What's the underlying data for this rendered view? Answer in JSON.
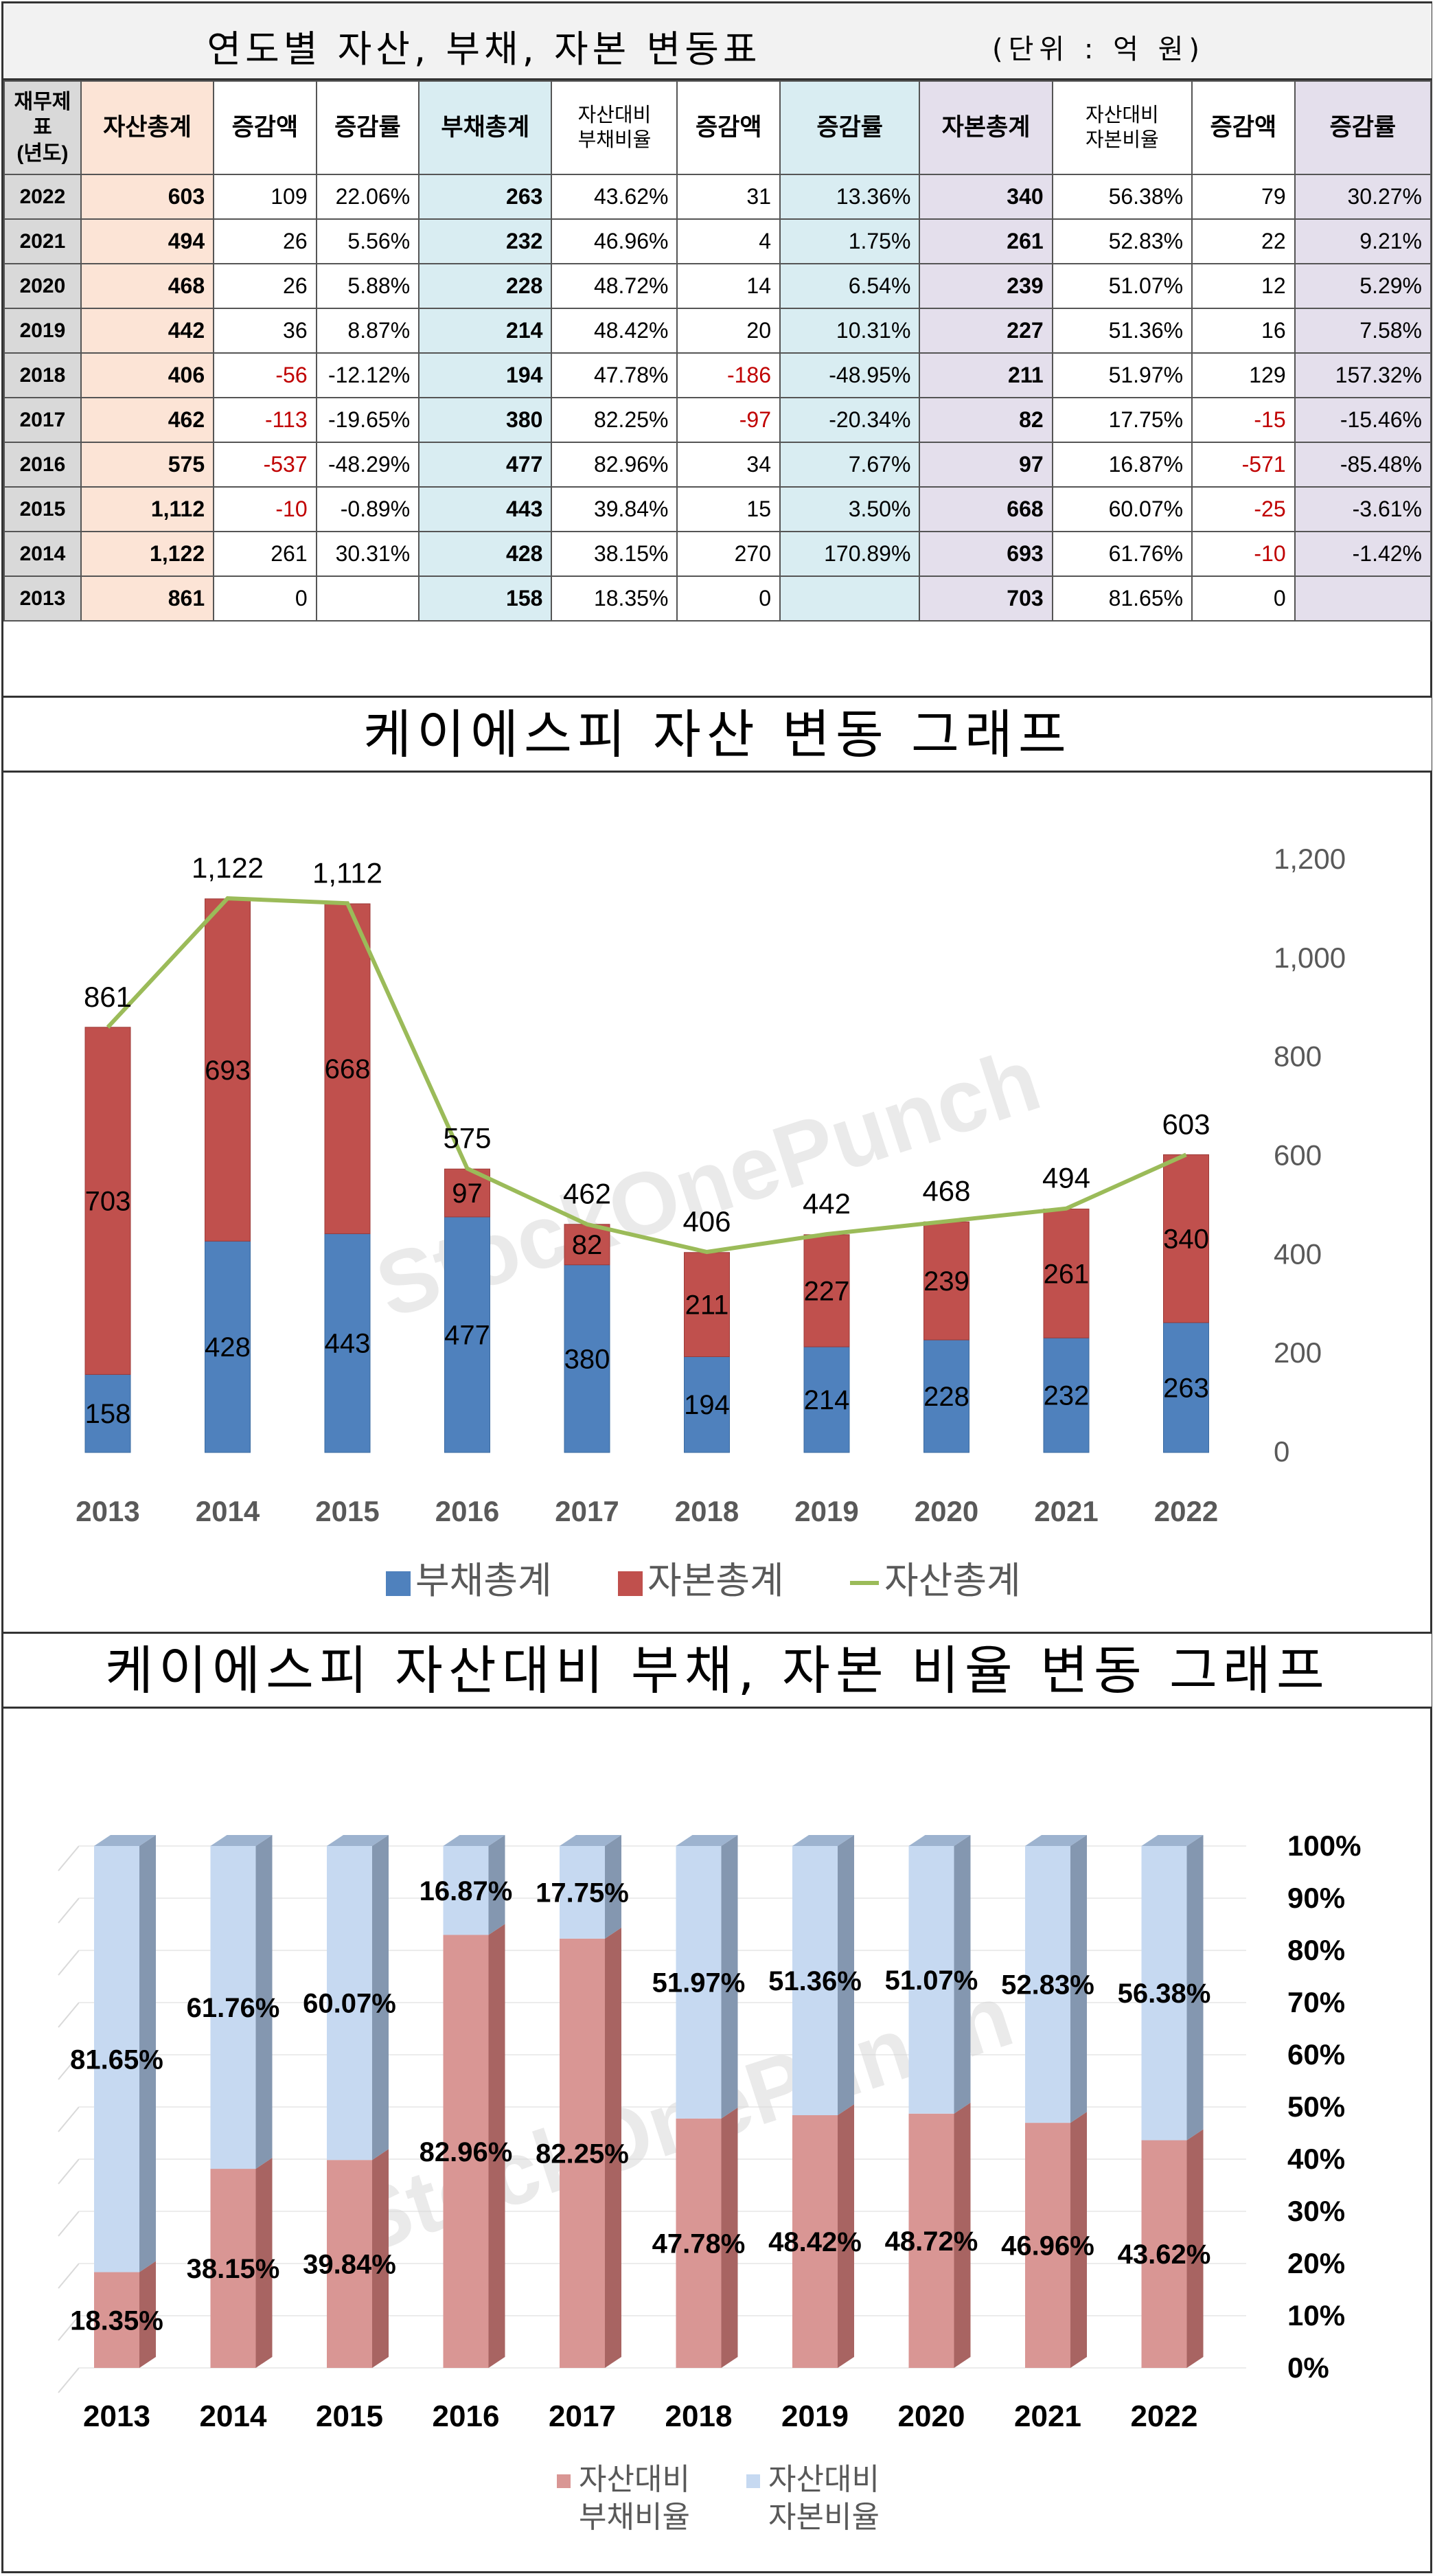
{
  "table": {
    "title": "연도별 자산, 부채, 자본 변동표",
    "unit": "(단위 : 억 원)",
    "headers": [
      "재무제표\n(년도)",
      "자산총계",
      "증감액",
      "증감률",
      "부채총계",
      "자산대비\n부채비율",
      "증감액",
      "증감률",
      "자본총계",
      "자산대비\n자본비율",
      "증감액",
      "증감률"
    ],
    "rows": [
      [
        "2022",
        "603",
        "109",
        "22.06%",
        "263",
        "43.62%",
        "31",
        "13.36%",
        "340",
        "56.38%",
        "79",
        "30.27%"
      ],
      [
        "2021",
        "494",
        "26",
        "5.56%",
        "232",
        "46.96%",
        "4",
        "1.75%",
        "261",
        "52.83%",
        "22",
        "9.21%"
      ],
      [
        "2020",
        "468",
        "26",
        "5.88%",
        "228",
        "48.72%",
        "14",
        "6.54%",
        "239",
        "51.07%",
        "12",
        "5.29%"
      ],
      [
        "2019",
        "442",
        "36",
        "8.87%",
        "214",
        "48.42%",
        "20",
        "10.31%",
        "227",
        "51.36%",
        "16",
        "7.58%"
      ],
      [
        "2018",
        "406",
        "-56",
        "-12.12%",
        "194",
        "47.78%",
        "-186",
        "-48.95%",
        "211",
        "51.97%",
        "129",
        "157.32%"
      ],
      [
        "2017",
        "462",
        "-113",
        "-19.65%",
        "380",
        "82.25%",
        "-97",
        "-20.34%",
        "82",
        "17.75%",
        "-15",
        "-15.46%"
      ],
      [
        "2016",
        "575",
        "-537",
        "-48.29%",
        "477",
        "82.96%",
        "34",
        "7.67%",
        "97",
        "16.87%",
        "-571",
        "-85.48%"
      ],
      [
        "2015",
        "1,112",
        "-10",
        "-0.89%",
        "443",
        "39.84%",
        "15",
        "3.50%",
        "668",
        "60.07%",
        "-25",
        "-3.61%"
      ],
      [
        "2014",
        "1,122",
        "261",
        "30.31%",
        "428",
        "38.15%",
        "270",
        "170.89%",
        "693",
        "61.76%",
        "-10",
        "-1.42%"
      ],
      [
        "2013",
        "861",
        "0",
        "",
        "158",
        "18.35%",
        "0",
        "",
        "703",
        "81.65%",
        "0",
        ""
      ]
    ]
  },
  "chart1": {
    "title": "케이에스피 자산 변동 그래프",
    "watermark": "StockOnePunch",
    "legend": [
      "부채총계",
      "자본총계",
      "자산총계"
    ],
    "colors": {
      "liability": "#4f81bd",
      "equity": "#c0504d",
      "asset": "#9bbb59"
    }
  },
  "chart2": {
    "title": "케이에스피 자산대비 부채, 자본 비율 변동 그래프",
    "watermark": "StockOnePunch",
    "legend": [
      "자산대비\n부채비율",
      "자산대비\n자본비율"
    ],
    "colors": {
      "debt": "#d99694",
      "equity": "#c6d9f1"
    }
  },
  "chart_data": [
    {
      "type": "bar",
      "title": "케이에스피 자산 변동 그래프",
      "categories": [
        "2013",
        "2014",
        "2015",
        "2016",
        "2017",
        "2018",
        "2019",
        "2020",
        "2021",
        "2022"
      ],
      "series": [
        {
          "name": "부채총계",
          "values": [
            158,
            428,
            443,
            477,
            380,
            194,
            214,
            228,
            232,
            263
          ]
        },
        {
          "name": "자본총계",
          "values": [
            703,
            693,
            668,
            97,
            82,
            211,
            227,
            239,
            261,
            340
          ]
        },
        {
          "name": "자산총계",
          "values": [
            861,
            1122,
            1112,
            575,
            462,
            406,
            442,
            468,
            494,
            603
          ],
          "type": "line"
        }
      ],
      "stacked": true,
      "ylim": [
        0,
        1200
      ],
      "yticks": [
        0,
        200,
        400,
        600,
        800,
        1000,
        1200
      ],
      "ytick_labels": [
        "0",
        "200",
        "400",
        "600",
        "800",
        "1,000",
        "1,200"
      ],
      "asset_labels": [
        "861",
        "1,122",
        "1,112",
        "575",
        "462",
        "406",
        "442",
        "468",
        "494",
        "603"
      ],
      "legend_position": "bottom"
    },
    {
      "type": "bar",
      "title": "케이에스피 자산대비 부채, 자본 비율 변동 그래프",
      "categories": [
        "2013",
        "2014",
        "2015",
        "2016",
        "2017",
        "2018",
        "2019",
        "2020",
        "2021",
        "2022"
      ],
      "series": [
        {
          "name": "자산대비 부채비율",
          "values": [
            18.35,
            38.15,
            39.84,
            82.96,
            82.25,
            47.78,
            48.42,
            48.72,
            46.96,
            43.62
          ]
        },
        {
          "name": "자산대비 자본비율",
          "values": [
            81.65,
            61.76,
            60.07,
            16.87,
            17.75,
            51.97,
            51.36,
            51.07,
            52.83,
            56.38
          ]
        }
      ],
      "stacked": true,
      "ylim": [
        0,
        100
      ],
      "yticks": [
        0,
        10,
        20,
        30,
        40,
        50,
        60,
        70,
        80,
        90,
        100
      ],
      "ytick_labels": [
        "0%",
        "10%",
        "20%",
        "30%",
        "40%",
        "50%",
        "60%",
        "70%",
        "80%",
        "90%",
        "100%"
      ],
      "legend_position": "bottom"
    }
  ]
}
